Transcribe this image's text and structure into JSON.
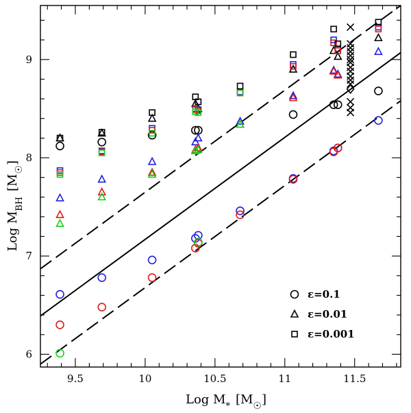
{
  "chart_data": {
    "type": "scatter",
    "xlim": [
      9.25,
      11.83
    ],
    "ylim": [
      5.87,
      9.55
    ],
    "x_ticks": [
      9.5,
      10,
      10.5,
      11,
      11.5
    ],
    "x_tick_labels": [
      "9.5",
      "10",
      "10.5",
      "11",
      "11.5"
    ],
    "y_ticks": [
      6,
      7,
      8,
      9
    ],
    "y_tick_labels": [
      "6",
      "7",
      "8",
      "9"
    ],
    "x_minor_step": 0.1,
    "y_minor_step": 0.2,
    "grid": false,
    "legend_position": "bottom-right",
    "xlabel": {
      "main": "Log M",
      "sub": "*",
      "unit": "[M",
      "unit_end": "]"
    },
    "ylabel": {
      "main": "Log M",
      "sub": "BH",
      "unit": "[M",
      "unit_end": "]"
    },
    "colors": {
      "black": "#000000",
      "blue": "#1f1fe0",
      "red": "#e01818",
      "green": "#18cc18"
    },
    "legend": [
      {
        "marker": "circle",
        "label": "ε=0.1"
      },
      {
        "marker": "triangle",
        "label": "ε=0.01"
      },
      {
        "marker": "square",
        "label": "ε=0.001"
      }
    ],
    "lines": [
      {
        "style": "solid",
        "x": [
          9.25,
          11.83
        ],
        "y": [
          6.39,
          9.07
        ]
      },
      {
        "style": "dashed",
        "x": [
          9.25,
          11.83
        ],
        "y": [
          6.87,
          9.55
        ]
      },
      {
        "style": "dashed",
        "x": [
          9.25,
          11.83
        ],
        "y": [
          5.9,
          8.58
        ]
      }
    ],
    "series": [
      {
        "marker": "circle",
        "color": "blue",
        "points": [
          [
            9.39,
            6.61
          ],
          [
            9.69,
            6.78
          ],
          [
            10.05,
            6.96
          ],
          [
            10.36,
            7.18
          ],
          [
            10.38,
            7.21
          ],
          [
            10.68,
            7.46
          ],
          [
            11.06,
            7.79
          ],
          [
            11.35,
            8.07
          ],
          [
            11.38,
            8.1
          ],
          [
            11.67,
            8.38
          ]
        ]
      },
      {
        "marker": "circle",
        "color": "red",
        "points": [
          [
            9.39,
            6.3
          ],
          [
            9.69,
            6.48
          ],
          [
            10.05,
            6.78
          ],
          [
            10.36,
            7.08
          ],
          [
            10.38,
            7.13
          ],
          [
            10.68,
            7.42
          ],
          [
            11.06,
            7.78
          ],
          [
            11.35,
            8.06
          ],
          [
            11.38,
            8.1
          ]
        ]
      },
      {
        "marker": "circle",
        "color": "green",
        "points": [
          [
            9.39,
            6.01
          ],
          [
            10.38,
            7.14
          ]
        ]
      },
      {
        "marker": "circle",
        "color": "black",
        "points": [
          [
            9.39,
            8.12
          ],
          [
            9.69,
            8.16
          ],
          [
            10.05,
            8.23
          ],
          [
            10.36,
            8.28
          ],
          [
            10.38,
            8.28
          ],
          [
            11.06,
            8.44
          ],
          [
            11.35,
            8.54
          ],
          [
            11.38,
            8.54
          ],
          [
            11.67,
            8.68
          ]
        ]
      },
      {
        "marker": "triangle",
        "color": "blue",
        "points": [
          [
            9.39,
            7.59
          ],
          [
            9.69,
            7.78
          ],
          [
            10.05,
            7.96
          ],
          [
            10.36,
            8.16
          ],
          [
            10.38,
            8.2
          ],
          [
            10.68,
            8.37
          ],
          [
            11.06,
            8.63
          ],
          [
            11.35,
            8.89
          ],
          [
            11.38,
            8.85
          ],
          [
            11.67,
            9.08
          ]
        ]
      },
      {
        "marker": "triangle",
        "color": "red",
        "points": [
          [
            9.39,
            7.42
          ],
          [
            9.69,
            7.65
          ],
          [
            10.05,
            7.85
          ],
          [
            10.36,
            8.08
          ],
          [
            10.38,
            8.1
          ],
          [
            10.68,
            8.34
          ],
          [
            11.06,
            8.61
          ],
          [
            11.35,
            8.88
          ],
          [
            11.38,
            8.84
          ]
        ]
      },
      {
        "marker": "triangle",
        "color": "green",
        "points": [
          [
            9.39,
            7.33
          ],
          [
            9.69,
            7.6
          ],
          [
            10.05,
            7.83
          ],
          [
            10.36,
            8.07
          ],
          [
            10.38,
            8.08
          ],
          [
            10.68,
            8.34
          ]
        ]
      },
      {
        "marker": "triangle",
        "color": "black",
        "points": [
          [
            9.39,
            8.2
          ],
          [
            9.69,
            8.25
          ],
          [
            10.05,
            8.4
          ],
          [
            10.36,
            8.55
          ],
          [
            10.38,
            8.5
          ],
          [
            11.06,
            8.9
          ],
          [
            11.35,
            9.09
          ],
          [
            11.38,
            9.03
          ],
          [
            11.67,
            9.22
          ]
        ]
      },
      {
        "marker": "square",
        "color": "blue",
        "points": [
          [
            9.39,
            7.87
          ],
          [
            9.69,
            8.07
          ],
          [
            10.05,
            8.3
          ],
          [
            10.36,
            8.5
          ],
          [
            10.38,
            8.49
          ],
          [
            10.68,
            8.67
          ],
          [
            11.06,
            8.95
          ],
          [
            11.35,
            9.2
          ],
          [
            11.38,
            9.11
          ],
          [
            11.67,
            9.33
          ]
        ]
      },
      {
        "marker": "square",
        "color": "red",
        "points": [
          [
            9.39,
            7.85
          ],
          [
            9.69,
            8.06
          ],
          [
            10.05,
            8.28
          ],
          [
            10.36,
            8.49
          ],
          [
            10.38,
            8.48
          ],
          [
            10.68,
            8.66
          ],
          [
            11.06,
            8.93
          ],
          [
            11.35,
            9.17
          ],
          [
            11.38,
            9.09
          ],
          [
            11.67,
            9.31
          ]
        ]
      },
      {
        "marker": "square",
        "color": "green",
        "points": [
          [
            9.39,
            7.83
          ],
          [
            9.69,
            8.05
          ],
          [
            10.05,
            8.25
          ],
          [
            10.36,
            8.47
          ],
          [
            10.38,
            8.46
          ],
          [
            10.68,
            8.66
          ]
        ]
      },
      {
        "marker": "square",
        "color": "black",
        "points": [
          [
            9.39,
            8.2
          ],
          [
            9.69,
            8.26
          ],
          [
            10.05,
            8.46
          ],
          [
            10.36,
            8.62
          ],
          [
            10.38,
            8.57
          ],
          [
            10.68,
            8.73
          ],
          [
            11.06,
            9.05
          ],
          [
            11.35,
            9.31
          ],
          [
            11.38,
            9.16
          ],
          [
            11.67,
            9.38
          ]
        ]
      },
      {
        "marker": "x",
        "color": "black",
        "points": [
          [
            11.47,
            8.46
          ],
          [
            11.47,
            8.51
          ],
          [
            11.47,
            8.57
          ],
          [
            11.47,
            8.75
          ],
          [
            11.47,
            8.79
          ],
          [
            11.47,
            8.83
          ],
          [
            11.47,
            8.88
          ],
          [
            11.47,
            8.92
          ],
          [
            11.47,
            8.97
          ],
          [
            11.47,
            9.0
          ],
          [
            11.47,
            9.04
          ],
          [
            11.47,
            9.08
          ],
          [
            11.47,
            9.12
          ],
          [
            11.47,
            9.16
          ],
          [
            11.47,
            9.33
          ]
        ]
      },
      {
        "marker": "diamond",
        "color": "black",
        "points": [
          [
            11.47,
            8.7
          ]
        ]
      }
    ]
  }
}
